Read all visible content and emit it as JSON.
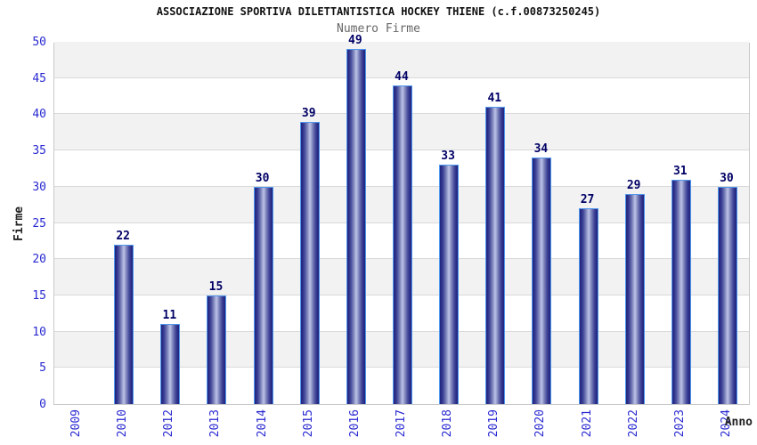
{
  "header": {
    "title": "ASSOCIAZIONE SPORTIVA DILETTANTISTICA HOCKEY THIENE (c.f.00873250245)",
    "subtitle": "Numero Firme"
  },
  "chart_data": {
    "type": "bar",
    "title": "Numero Firme",
    "categories": [
      "2009",
      "2010",
      "2012",
      "2013",
      "2014",
      "2015",
      "2016",
      "2017",
      "2018",
      "2019",
      "2020",
      "2021",
      "2022",
      "2023",
      "2024"
    ],
    "values": [
      0,
      22,
      11,
      15,
      30,
      39,
      49,
      44,
      33,
      41,
      34,
      27,
      29,
      31,
      30
    ],
    "xlabel": "Anno",
    "ylabel": "Firme",
    "ylim": [
      0,
      50
    ],
    "ytick_step": 5,
    "yticks": [
      0,
      5,
      10,
      15,
      20,
      25,
      30,
      35,
      40,
      45,
      50
    ],
    "grid": "horizontal-alternating-bands",
    "legend": "none",
    "colors": {
      "bar_border": "#4f97ee",
      "bar_gradient_dark": "#23257d",
      "bar_gradient_light": "#bac0e4",
      "axis_tick_color": "#2a2ad2",
      "value_label_color": "#000066",
      "band_gray": "#f2f2f2",
      "band_white": "#ffffff",
      "gridline": "#d9d9d9",
      "plot_border": "#c9c9c9",
      "title_color": "#111111",
      "subtitle_color": "#666666",
      "axis_title_color": "#222222"
    }
  }
}
